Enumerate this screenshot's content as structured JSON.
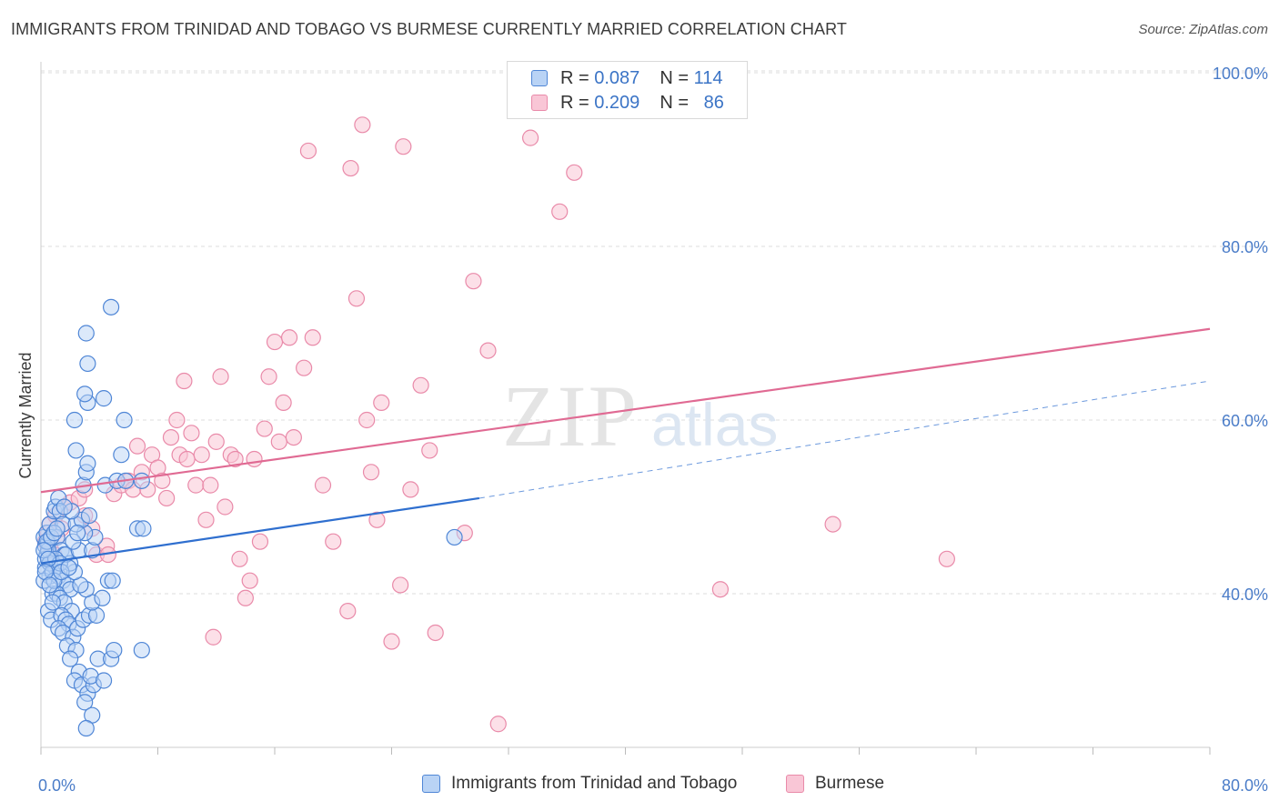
{
  "title": "IMMIGRANTS FROM TRINIDAD AND TOBAGO VS BURMESE CURRENTLY MARRIED CORRELATION CHART",
  "source": "Source: ZipAtlas.com",
  "watermark": {
    "zip": "ZIP",
    "atlas": "atlas"
  },
  "colors": {
    "blue_fill": "#b9d3f5",
    "blue_stroke": "#4f86d6",
    "blue_line": "#2f6fcf",
    "pink_fill": "#f9c6d6",
    "pink_stroke": "#e98aa9",
    "pink_line": "#e06a93",
    "tick_text": "#4a7cc8",
    "grid": "#dddddd"
  },
  "legend_top": {
    "rows": [
      {
        "r_label": "R =",
        "r_value": "0.087",
        "n_label": "N =",
        "n_value": "114",
        "series": "blue"
      },
      {
        "r_label": "R =",
        "r_value": "0.209",
        "n_label": "N =",
        "n_value": "86",
        "series": "pink"
      }
    ]
  },
  "chart_data": {
    "type": "scatter",
    "title": "IMMIGRANTS FROM TRINIDAD AND TOBAGO VS BURMESE CURRENTLY MARRIED CORRELATION CHART",
    "xlabel": "",
    "ylabel": "Currently Married",
    "xlim": [
      0,
      80
    ],
    "ylim": [
      20,
      103
    ],
    "x_tick_labels": [
      "0.0%",
      "80.0%"
    ],
    "y_ticks": [
      40,
      60,
      80,
      100
    ],
    "y_tick_labels": [
      "40.0%",
      "60.0%",
      "80.0%",
      "100.0%"
    ],
    "grid": true,
    "legend_placement": "bottom",
    "series": [
      {
        "name": "Immigrants from Trinidad and Tobago",
        "color": "blue",
        "r": 0.087,
        "n": 114,
        "trend": {
          "x0": 0,
          "y0": 43.5,
          "x1": 30,
          "y1": 51.0,
          "dashed_to_x": 80,
          "dashed_to_y": 64.5
        },
        "points": [
          [
            0.2,
            46.5
          ],
          [
            0.3,
            45.5
          ],
          [
            0.4,
            44.5
          ],
          [
            0.5,
            46
          ],
          [
            0.3,
            43
          ],
          [
            0.6,
            42
          ],
          [
            0.2,
            41.5
          ],
          [
            0.8,
            40
          ],
          [
            0.5,
            38
          ],
          [
            0.7,
            37
          ],
          [
            0.4,
            47
          ],
          [
            0.6,
            48
          ],
          [
            0.9,
            49.5
          ],
          [
            1.0,
            50
          ],
          [
            1.2,
            51
          ],
          [
            1.3,
            49.5
          ],
          [
            1.5,
            48
          ],
          [
            1.1,
            46.5
          ],
          [
            1.4,
            45
          ],
          [
            1.6,
            44.5
          ],
          [
            1.0,
            43
          ],
          [
            1.2,
            42
          ],
          [
            1.5,
            41.5
          ],
          [
            1.8,
            41
          ],
          [
            2.0,
            40.5
          ],
          [
            1.1,
            40
          ],
          [
            1.3,
            39.5
          ],
          [
            1.6,
            39
          ],
          [
            2.1,
            38
          ],
          [
            1.4,
            37.5
          ],
          [
            1.7,
            37
          ],
          [
            1.9,
            36.5
          ],
          [
            1.2,
            36
          ],
          [
            1.5,
            35.5
          ],
          [
            2.2,
            35
          ],
          [
            1.8,
            34
          ],
          [
            2.4,
            33.5
          ],
          [
            2.0,
            32.5
          ],
          [
            2.6,
            31
          ],
          [
            2.3,
            30
          ],
          [
            2.8,
            29.5
          ],
          [
            3.2,
            28.5
          ],
          [
            3.0,
            27.5
          ],
          [
            3.6,
            29.5
          ],
          [
            3.4,
            30.5
          ],
          [
            4.3,
            30
          ],
          [
            3.9,
            32.5
          ],
          [
            4.8,
            32.5
          ],
          [
            5.0,
            33.5
          ],
          [
            6.9,
            33.5
          ],
          [
            2.5,
            36
          ],
          [
            2.9,
            37
          ],
          [
            3.3,
            37.5
          ],
          [
            3.8,
            37.5
          ],
          [
            3.5,
            39
          ],
          [
            4.2,
            39.5
          ],
          [
            4.6,
            41.5
          ],
          [
            4.9,
            41.5
          ],
          [
            3.1,
            40.5
          ],
          [
            2.7,
            41
          ],
          [
            2.3,
            42.5
          ],
          [
            2.0,
            43.5
          ],
          [
            1.7,
            44.5
          ],
          [
            2.6,
            45
          ],
          [
            3.5,
            45
          ],
          [
            3.7,
            46.5
          ],
          [
            3.0,
            47
          ],
          [
            2.4,
            48
          ],
          [
            2.8,
            48.5
          ],
          [
            3.3,
            49
          ],
          [
            2.1,
            49.5
          ],
          [
            1.6,
            50
          ],
          [
            2.9,
            52.5
          ],
          [
            3.1,
            54
          ],
          [
            3.2,
            55
          ],
          [
            4.4,
            52.5
          ],
          [
            5.2,
            53
          ],
          [
            5.8,
            53
          ],
          [
            6.9,
            53
          ],
          [
            5.5,
            56
          ],
          [
            2.4,
            56.5
          ],
          [
            2.3,
            60
          ],
          [
            5.7,
            60
          ],
          [
            3.2,
            62
          ],
          [
            4.3,
            62.5
          ],
          [
            3.0,
            63
          ],
          [
            3.2,
            66.5
          ],
          [
            3.1,
            70
          ],
          [
            4.8,
            73
          ],
          [
            6.6,
            47.5
          ],
          [
            7.0,
            47.5
          ],
          [
            3.5,
            26
          ],
          [
            3.1,
            24.5
          ],
          [
            0.3,
            44
          ],
          [
            0.5,
            45
          ],
          [
            0.6,
            43.5
          ],
          [
            0.8,
            42.5
          ],
          [
            0.9,
            41.5
          ],
          [
            1.0,
            44
          ],
          [
            1.3,
            43.5
          ],
          [
            0.4,
            46
          ],
          [
            0.7,
            46.5
          ],
          [
            0.9,
            47
          ],
          [
            1.1,
            47.5
          ],
          [
            0.2,
            45
          ],
          [
            0.5,
            44
          ],
          [
            0.3,
            42.5
          ],
          [
            0.6,
            41
          ],
          [
            1.4,
            42.5
          ],
          [
            1.9,
            43
          ],
          [
            2.2,
            46
          ],
          [
            2.5,
            47
          ],
          [
            28.3,
            46.5
          ],
          [
            0.8,
            39
          ]
        ]
      },
      {
        "name": "Burmese",
        "color": "pink",
        "r": 0.209,
        "n": 86,
        "trend": {
          "x0": 0,
          "y0": 51.7,
          "x1": 80,
          "y1": 70.5
        },
        "points": [
          [
            0.3,
            46
          ],
          [
            0.5,
            47
          ],
          [
            0.7,
            45
          ],
          [
            0.9,
            44.5
          ],
          [
            1.1,
            46.5
          ],
          [
            1.4,
            47.5
          ],
          [
            0.6,
            48
          ],
          [
            1.0,
            49
          ],
          [
            1.6,
            50
          ],
          [
            2.0,
            50.5
          ],
          [
            2.6,
            51
          ],
          [
            3.0,
            49
          ],
          [
            3.5,
            47.5
          ],
          [
            3.8,
            44.5
          ],
          [
            4.5,
            45.5
          ],
          [
            5.0,
            51.5
          ],
          [
            5.5,
            52.5
          ],
          [
            6.0,
            53
          ],
          [
            6.3,
            52
          ],
          [
            6.6,
            57
          ],
          [
            6.9,
            54
          ],
          [
            7.3,
            52
          ],
          [
            7.6,
            56
          ],
          [
            8.0,
            54.5
          ],
          [
            8.3,
            53
          ],
          [
            8.6,
            51
          ],
          [
            8.9,
            58
          ],
          [
            9.3,
            60
          ],
          [
            9.5,
            56
          ],
          [
            10.0,
            55.5
          ],
          [
            10.3,
            58.5
          ],
          [
            10.6,
            52.5
          ],
          [
            11.0,
            56
          ],
          [
            11.3,
            48.5
          ],
          [
            11.6,
            52.5
          ],
          [
            12.0,
            57.5
          ],
          [
            12.3,
            65
          ],
          [
            12.6,
            50
          ],
          [
            13.0,
            56
          ],
          [
            13.3,
            55.5
          ],
          [
            13.6,
            44
          ],
          [
            14.0,
            39.5
          ],
          [
            14.3,
            41.5
          ],
          [
            14.6,
            55.5
          ],
          [
            15.0,
            46
          ],
          [
            15.3,
            59
          ],
          [
            15.6,
            65
          ],
          [
            16.0,
            69
          ],
          [
            16.3,
            57.5
          ],
          [
            16.6,
            62
          ],
          [
            17.0,
            69.5
          ],
          [
            17.3,
            58
          ],
          [
            18.0,
            66
          ],
          [
            18.6,
            69.5
          ],
          [
            19.3,
            52.5
          ],
          [
            20.0,
            46
          ],
          [
            21.0,
            38
          ],
          [
            21.6,
            74
          ],
          [
            22.3,
            60
          ],
          [
            22.6,
            54
          ],
          [
            23.0,
            48.5
          ],
          [
            23.3,
            62
          ],
          [
            24.0,
            34.5
          ],
          [
            24.6,
            41
          ],
          [
            25.3,
            52
          ],
          [
            26.0,
            64
          ],
          [
            26.6,
            56.5
          ],
          [
            27.0,
            35.5
          ],
          [
            29.0,
            47
          ],
          [
            29.6,
            76
          ],
          [
            30.6,
            68
          ],
          [
            31.3,
            25
          ],
          [
            33.5,
            92.5
          ],
          [
            35.5,
            84
          ],
          [
            36.5,
            88.5
          ],
          [
            22.0,
            94
          ],
          [
            18.3,
            91
          ],
          [
            21.2,
            89
          ],
          [
            24.8,
            91.5
          ],
          [
            9.8,
            64.5
          ],
          [
            4.6,
            44.5
          ],
          [
            3.0,
            52
          ],
          [
            11.8,
            35
          ],
          [
            46.5,
            40.5
          ],
          [
            54.2,
            48
          ],
          [
            62.0,
            44
          ]
        ]
      }
    ]
  },
  "legend_bottom": [
    {
      "label": "Immigrants from Trinidad and Tobago",
      "series": "blue"
    },
    {
      "label": "Burmese",
      "series": "pink"
    }
  ]
}
